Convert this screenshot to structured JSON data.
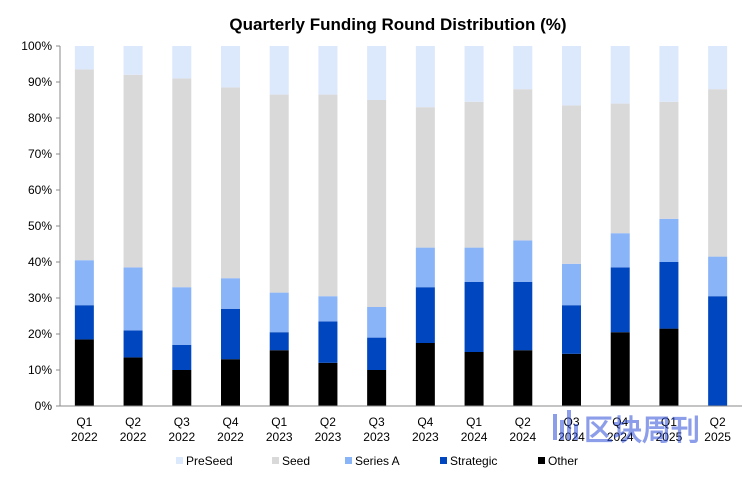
{
  "chart_data": {
    "type": "bar",
    "stacked": true,
    "title": "Quarterly Funding Round Distribution (%)",
    "xlabel": "",
    "ylabel": "",
    "ylim": [
      0,
      100
    ],
    "ytick_suffix": "%",
    "yticks": [
      0,
      10,
      20,
      30,
      40,
      50,
      60,
      70,
      80,
      90,
      100
    ],
    "grid": false,
    "legend_position": "bottom",
    "categories": [
      [
        "Q1",
        "2022"
      ],
      [
        "Q2",
        "2022"
      ],
      [
        "Q3",
        "2022"
      ],
      [
        "Q4",
        "2022"
      ],
      [
        "Q1",
        "2023"
      ],
      [
        "Q2",
        "2023"
      ],
      [
        "Q3",
        "2023"
      ],
      [
        "Q4",
        "2023"
      ],
      [
        "Q1",
        "2024"
      ],
      [
        "Q2",
        "2024"
      ],
      [
        "Q3",
        "2024"
      ],
      [
        "Q4",
        "2024"
      ],
      [
        "Q1",
        "2025"
      ],
      [
        "Q2",
        "2025"
      ]
    ],
    "series": [
      {
        "name": "Other",
        "color": "#000000",
        "values": [
          18.5,
          13.5,
          10,
          13,
          15.5,
          12,
          10,
          17.5,
          15,
          15.5,
          14.5,
          20.5,
          21.5,
          0
        ]
      },
      {
        "name": "Strategic",
        "color": "#0046be",
        "values": [
          9.5,
          7.5,
          7,
          14,
          5,
          11.5,
          9,
          15.5,
          19.5,
          19,
          13.5,
          18,
          18.5,
          30.5
        ]
      },
      {
        "name": "Series A",
        "color": "#8ab4f8",
        "values": [
          12.5,
          17.5,
          16,
          8.5,
          11,
          7,
          8.5,
          11,
          9.5,
          11.5,
          11.5,
          9.5,
          12,
          11
        ]
      },
      {
        "name": "Seed",
        "color": "#d9d9d9",
        "values": [
          53,
          53.5,
          58,
          53,
          55,
          56,
          57.5,
          39,
          40.5,
          42,
          44,
          36,
          32.5,
          46.5
        ]
      },
      {
        "name": "PreSeed",
        "color": "#dce8fb",
        "values": [
          6.5,
          8,
          9,
          11.5,
          13.5,
          13.5,
          15,
          17,
          15.5,
          12,
          16.5,
          16,
          15.5,
          12
        ]
      }
    ],
    "legend_order": [
      "PreSeed",
      "Seed",
      "Series A",
      "Strategic",
      "Other"
    ]
  },
  "watermark": {
    "text": "区块周刊",
    "icon": "bar-chart-logo-icon",
    "color": "#2f4fd8"
  }
}
